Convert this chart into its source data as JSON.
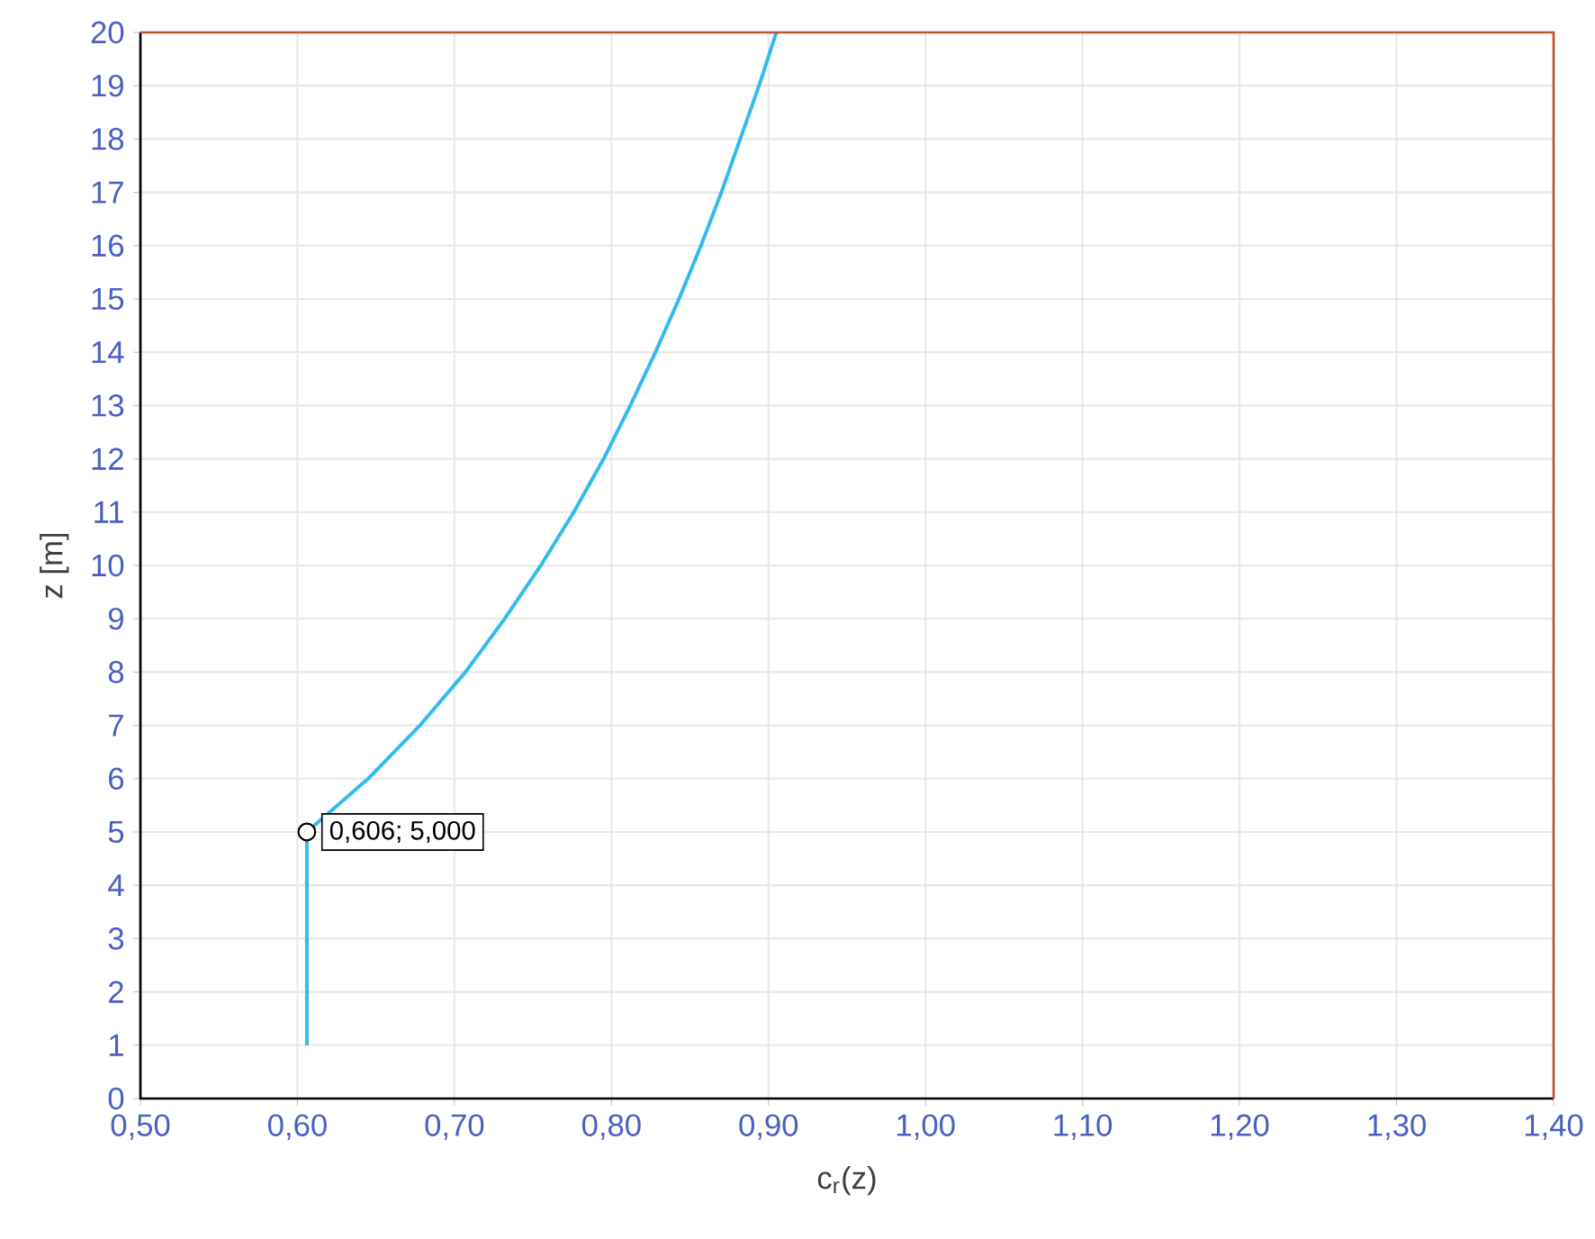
{
  "chart_data": {
    "type": "line",
    "xlabel": "c$_{r}$(z)",
    "ylabel": "z [m]",
    "series": [
      {
        "color": "#33bbee",
        "x": [
          0.606,
          0.606,
          0.645,
          0.678,
          0.707,
          0.732,
          0.755,
          0.776,
          0.795,
          0.812,
          0.828,
          0.843,
          0.857,
          0.87,
          0.882,
          0.894,
          0.905
        ],
        "values": [
          1,
          5,
          6,
          7,
          8,
          9,
          10,
          11,
          12,
          13,
          14,
          15,
          16,
          17,
          18,
          19,
          20
        ]
      }
    ],
    "xlim": [
      0.5,
      1.4
    ],
    "xticks": [
      {
        "value": 0.5,
        "label": "0,50"
      },
      {
        "value": 0.6,
        "label": "0,60"
      },
      {
        "value": 0.7,
        "label": "0,70"
      },
      {
        "value": 0.8,
        "label": "0,80"
      },
      {
        "value": 0.9,
        "label": "0,90"
      },
      {
        "value": 1.0,
        "label": "1,00"
      },
      {
        "value": 1.1,
        "label": "1,10"
      },
      {
        "value": 1.2,
        "label": "1,20"
      },
      {
        "value": 1.3,
        "label": "1,30"
      },
      {
        "value": 1.4,
        "label": "1,40"
      }
    ],
    "ylim": [
      0,
      20
    ],
    "yticks": [
      0,
      1,
      2,
      3,
      4,
      5,
      6,
      7,
      8,
      9,
      10,
      11,
      12,
      13,
      14,
      15,
      16,
      17,
      18,
      19,
      20
    ],
    "grid": true,
    "legend": false,
    "marker": "none",
    "line_style": "solid",
    "annotations": [
      {
        "text": "0,606; 5,000",
        "x": 0.606,
        "y": 5
      }
    ]
  }
}
